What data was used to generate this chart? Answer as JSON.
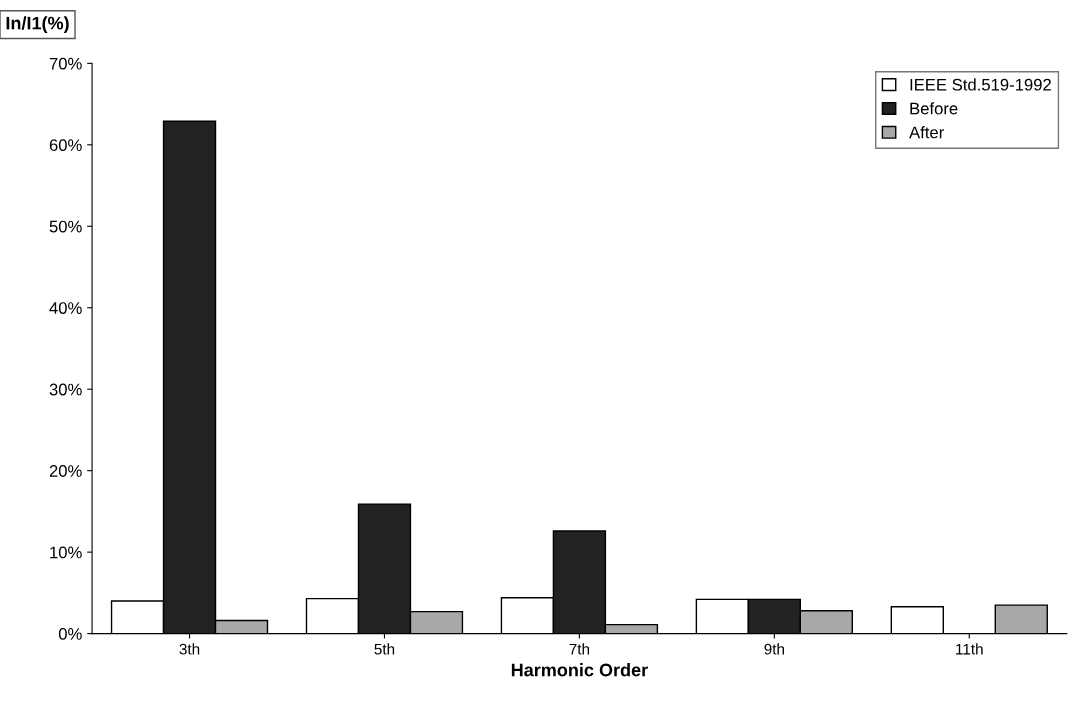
{
  "chart_data": {
    "type": "bar",
    "ylabel": "In/I1(%)",
    "xlabel": "Harmonic Order",
    "categories": [
      "3th",
      "5th",
      "7th",
      "9th",
      "11th"
    ],
    "series": [
      {
        "name": "IEEE Std.519-1992",
        "color": "#ffffff",
        "values": [
          4.0,
          4.3,
          4.4,
          4.2,
          3.3
        ]
      },
      {
        "name": "Before",
        "color": "#222222",
        "values": [
          62.9,
          15.9,
          12.6,
          4.2,
          null
        ]
      },
      {
        "name": "After",
        "color": "#a8a8a8",
        "values": [
          1.6,
          2.7,
          1.1,
          2.8,
          3.5
        ]
      }
    ],
    "ylim": [
      0,
      70
    ],
    "yticks": [
      {
        "value": 0,
        "label": "0%"
      },
      {
        "value": 10,
        "label": "10%"
      },
      {
        "value": 20,
        "label": "20%"
      },
      {
        "value": 30,
        "label": "30%"
      },
      {
        "value": 40,
        "label": "40%"
      },
      {
        "value": 50,
        "label": "50%"
      },
      {
        "value": 60,
        "label": "60%"
      },
      {
        "value": 70,
        "label": "70%"
      }
    ],
    "grid": false,
    "legend": "top right"
  }
}
